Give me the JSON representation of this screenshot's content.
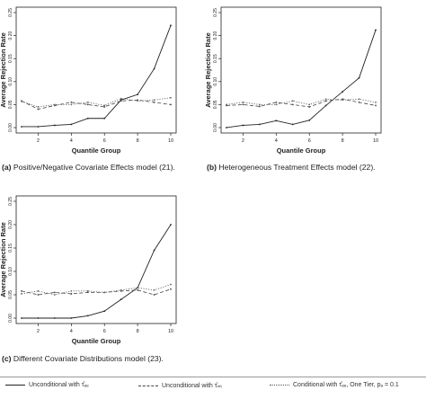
{
  "chart_data": [
    {
      "type": "line",
      "caption_label": "(a)",
      "caption": "Positive/Negative Covariate Effects model (21).",
      "xlabel": "Quantile Group",
      "ylabel": "Average Rejection Rate",
      "xlim": [
        1,
        10
      ],
      "ylim": [
        0,
        0.25
      ],
      "xticks": [
        2,
        4,
        6,
        8,
        10
      ],
      "yticks": [
        0.0,
        0.05,
        0.1,
        0.15,
        0.2,
        0.25
      ],
      "ytick_labels": [
        "0.00",
        "0.05",
        "0.10",
        "0.15",
        "0.20",
        "0.25"
      ],
      "x": [
        1,
        2,
        3,
        4,
        5,
        6,
        7,
        8,
        9,
        10
      ],
      "series": [
        {
          "legend_index": 0,
          "values": [
            0.002,
            0.002,
            0.005,
            0.007,
            0.02,
            0.02,
            0.06,
            0.072,
            0.128,
            0.222
          ]
        },
        {
          "legend_index": 1,
          "values": [
            0.058,
            0.04,
            0.048,
            0.055,
            0.05,
            0.045,
            0.058,
            0.06,
            0.055,
            0.05
          ]
        },
        {
          "legend_index": 2,
          "values": [
            0.057,
            0.045,
            0.05,
            0.05,
            0.055,
            0.048,
            0.063,
            0.058,
            0.06,
            0.065
          ]
        }
      ]
    },
    {
      "type": "line",
      "caption_label": "(b)",
      "caption": "Heterogeneous Treatment Effects model (22).",
      "xlabel": "Quantile Group",
      "ylabel": "Average Rejection Rate",
      "xlim": [
        1,
        10
      ],
      "ylim": [
        0,
        0.25
      ],
      "xticks": [
        2,
        4,
        6,
        8,
        10
      ],
      "yticks": [
        0.0,
        0.05,
        0.1,
        0.15,
        0.2,
        0.25
      ],
      "ytick_labels": [
        "0.00",
        "0.05",
        "0.10",
        "0.15",
        "0.20",
        "0.25"
      ],
      "x": [
        1,
        2,
        3,
        4,
        5,
        6,
        7,
        8,
        9,
        10
      ],
      "series": [
        {
          "legend_index": 0,
          "values": [
            0.0,
            0.005,
            0.007,
            0.015,
            0.007,
            0.016,
            0.048,
            0.078,
            0.108,
            0.212
          ]
        },
        {
          "legend_index": 1,
          "values": [
            0.048,
            0.05,
            0.046,
            0.055,
            0.05,
            0.045,
            0.058,
            0.062,
            0.055,
            0.048
          ]
        },
        {
          "legend_index": 2,
          "values": [
            0.05,
            0.055,
            0.05,
            0.05,
            0.058,
            0.05,
            0.062,
            0.06,
            0.062,
            0.055
          ]
        }
      ]
    },
    {
      "type": "line",
      "caption_label": "(c)",
      "caption": "Different Covariate Distributions model (23).",
      "xlabel": "Quantile Group",
      "ylabel": "Average Rejection Rate",
      "xlim": [
        1,
        10
      ],
      "ylim": [
        0,
        0.25
      ],
      "xticks": [
        2,
        4,
        6,
        8,
        10
      ],
      "yticks": [
        0.0,
        0.05,
        0.1,
        0.15,
        0.2,
        0.25
      ],
      "ytick_labels": [
        "0.00",
        "0.05",
        "0.10",
        "0.15",
        "0.20",
        "0.25"
      ],
      "x": [
        1,
        2,
        3,
        4,
        5,
        6,
        7,
        8,
        9,
        10
      ],
      "series": [
        {
          "legend_index": 0,
          "values": [
            0.0,
            0.0,
            0.0,
            0.0,
            0.005,
            0.015,
            0.04,
            0.065,
            0.145,
            0.2
          ]
        },
        {
          "legend_index": 1,
          "values": [
            0.058,
            0.05,
            0.055,
            0.052,
            0.055,
            0.055,
            0.058,
            0.06,
            0.05,
            0.062
          ]
        },
        {
          "legend_index": 2,
          "values": [
            0.052,
            0.058,
            0.05,
            0.058,
            0.058,
            0.055,
            0.06,
            0.065,
            0.06,
            0.072
          ]
        }
      ]
    }
  ],
  "legend": [
    {
      "label": "Unconditional with τ̂ₐₑ",
      "style": "solid"
    },
    {
      "label": "Unconditional with τ̂ᵢₙₜ",
      "style": "dashed"
    },
    {
      "label": "Conditional with τ̂ₐₑ, One Tier,  pₐ = 0.1",
      "style": "dotted"
    }
  ]
}
